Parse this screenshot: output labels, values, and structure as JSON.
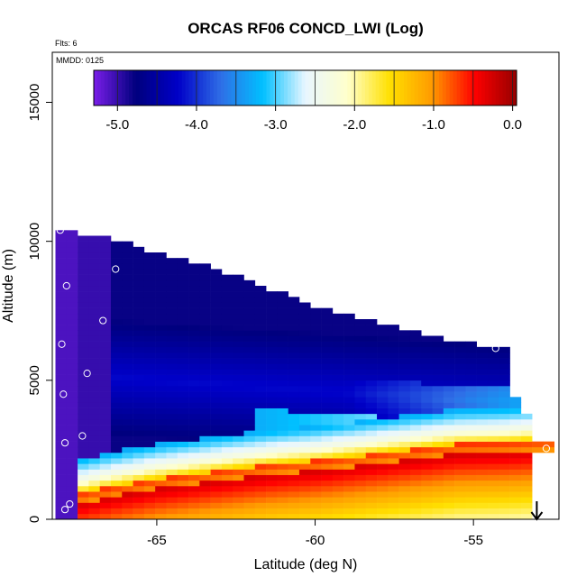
{
  "chart_data": {
    "type": "heatmap",
    "title": "ORCAS RF06 CONCD_LWI (Log)",
    "xlabel": "Latitude (deg N)",
    "ylabel": "Altitude (m)",
    "annotations": {
      "flights": "Flts: 6",
      "date": "MMDD: 0125"
    },
    "xlim": [
      -68.3,
      -52.3
    ],
    "ylim": [
      0,
      16800
    ],
    "x_ticks": [
      -65,
      -60,
      -55
    ],
    "x_tick_labels": [
      "-65",
      "-60",
      "-55"
    ],
    "y_ticks": [
      0,
      5000,
      10000,
      15000
    ],
    "y_tick_labels": [
      "0",
      "5000",
      "10000",
      "15000"
    ],
    "colorbar": {
      "range": [
        -5.3,
        0.05
      ],
      "ticks": [
        -5.0,
        -4.0,
        -3.0,
        -2.0,
        -1.0,
        0.0
      ],
      "tick_labels": [
        "-5.0",
        "-4.0",
        "-3.0",
        "-2.0",
        "-1.0",
        "0.0"
      ],
      "colors": [
        "#7a1ee8",
        "#00007e",
        "#0000c8",
        "#2f6ee6",
        "#00c0ff",
        "#e8f6ff",
        "#ffffcc",
        "#ffe000",
        "#ff9a00",
        "#ff0000",
        "#960000"
      ]
    },
    "domain_top": {
      "lat": [
        -68.2,
        -66.5,
        -65,
        -63,
        -61.5,
        -60,
        -58.5,
        -57,
        -55.5,
        -54
      ],
      "alt": [
        10400,
        10000,
        9500,
        8900,
        8200,
        7600,
        7100,
        6700,
        6300,
        6000
      ]
    },
    "domain_bottom": {
      "lat": [
        -68.2,
        -66.5,
        -65,
        -63,
        -61.5,
        -60,
        -58.5,
        -57,
        -55.5,
        -54,
        -52.7
      ],
      "alt": [
        500,
        900,
        1200,
        1500,
        1700,
        1850,
        2050,
        2250,
        2450,
        2500,
        2600
      ]
    },
    "points": [
      {
        "x": -68.05,
        "y": 10400
      },
      {
        "x": -67.85,
        "y": 8400
      },
      {
        "x": -66.3,
        "y": 9000
      },
      {
        "x": -66.7,
        "y": 7150
      },
      {
        "x": -68.0,
        "y": 6300
      },
      {
        "x": -67.2,
        "y": 5250
      },
      {
        "x": -67.95,
        "y": 4500
      },
      {
        "x": -67.35,
        "y": 3000
      },
      {
        "x": -67.9,
        "y": 2750
      },
      {
        "x": -67.75,
        "y": 550
      },
      {
        "x": -67.9,
        "y": 350
      },
      {
        "x": -54.3,
        "y": 6150
      },
      {
        "x": -52.7,
        "y": 2550
      }
    ],
    "arrow_at_lat": -53.0
  }
}
